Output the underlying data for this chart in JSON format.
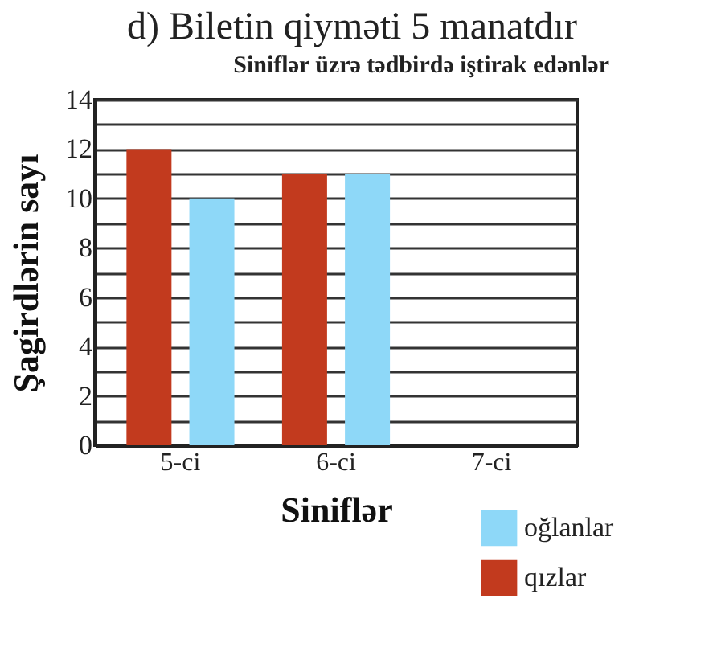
{
  "chart_data": {
    "type": "bar",
    "title": "Siniflər üzrə tədbirdə iştirak edənlər",
    "annotations": [
      "d) Biletin qiyməti 5 manatdır"
    ],
    "xlabel": "Siniflər",
    "ylabel": "Şagirdlərin sayı",
    "categories": [
      "5-ci",
      "6-ci",
      "7-ci"
    ],
    "series": [
      {
        "name": "qızlar",
        "color": "#c23a1e",
        "values": [
          12,
          11,
          null
        ]
      },
      {
        "name": "oğlanlar",
        "color": "#8ed8f8",
        "values": [
          10,
          11,
          null
        ]
      }
    ],
    "ylim": [
      0,
      14
    ],
    "yticks": [
      0,
      {
        "value": 1,
        "label": null
      },
      2,
      {
        "value": 3,
        "label": null
      },
      4,
      {
        "value": 5,
        "label": null
      },
      6,
      {
        "value": 7,
        "label": null
      },
      8,
      {
        "value": 9,
        "label": null
      },
      10,
      {
        "value": 11,
        "label": null
      },
      12,
      {
        "value": 13,
        "label": null
      },
      14
    ],
    "grid": "y",
    "legend": "bottom right"
  }
}
